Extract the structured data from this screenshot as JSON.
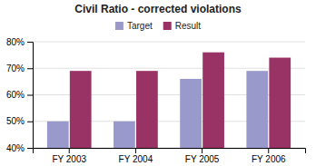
{
  "chart_data": {
    "type": "bar",
    "title": "Civil Ratio  - corrected violations",
    "categories": [
      "FY 2003",
      "FY 2004",
      "FY 2005",
      "FY 2006"
    ],
    "series": [
      {
        "name": "Target",
        "color": "#9999cc",
        "values": [
          0.5,
          0.5,
          0.66,
          0.69
        ]
      },
      {
        "name": "Result",
        "color": "#993366",
        "values": [
          0.69,
          0.69,
          0.76,
          0.74
        ]
      }
    ],
    "ylim": [
      0.4,
      0.8
    ],
    "yticks": [
      {
        "value": 0.4,
        "label": "40%"
      },
      {
        "value": 0.5,
        "label": "50%"
      },
      {
        "value": 0.6,
        "label": "60%"
      },
      {
        "value": 0.7,
        "label": "70%"
      },
      {
        "value": 0.8,
        "label": "80%"
      }
    ],
    "grid": true,
    "legend": "top"
  }
}
